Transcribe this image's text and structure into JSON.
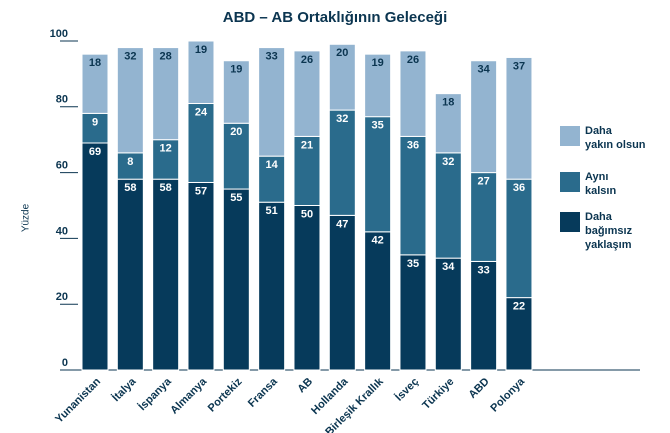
{
  "chart_data": {
    "type": "stacked_bar",
    "title": "ABD – AB Ortaklığının Geleceği",
    "y_label": "Yüzde",
    "categories": [
      "Yunanistan",
      "İtalya",
      "İspanya",
      "Almanya",
      "Portekiz",
      "Fransa",
      "AB",
      "Hollanda",
      "Birleşik Krallık",
      "İsveç",
      "Türkiye",
      "ABD",
      "Polonya"
    ],
    "series": [
      {
        "name": "Daha\nbağımsız\nyaklaşım",
        "color": "#063a5b",
        "label_color": "#ffffff",
        "values": [
          69,
          58,
          58,
          57,
          55,
          51,
          50,
          47,
          42,
          35,
          34,
          33,
          22
        ]
      },
      {
        "name": "Aynı\nkalsın",
        "color": "#2a6b8c",
        "label_color": "#ffffff",
        "values": [
          9,
          8,
          12,
          24,
          20,
          14,
          21,
          32,
          35,
          36,
          32,
          27,
          36
        ]
      },
      {
        "name": "Daha\nyakın olsun",
        "color": "#93b4d0",
        "label_color": "#0b3550",
        "values": [
          18,
          32,
          28,
          19,
          19,
          33,
          26,
          20,
          19,
          26,
          18,
          34,
          37
        ]
      }
    ],
    "ylim": [
      0,
      100
    ],
    "yticks": [
      0,
      20,
      40,
      60,
      80,
      100
    ]
  }
}
